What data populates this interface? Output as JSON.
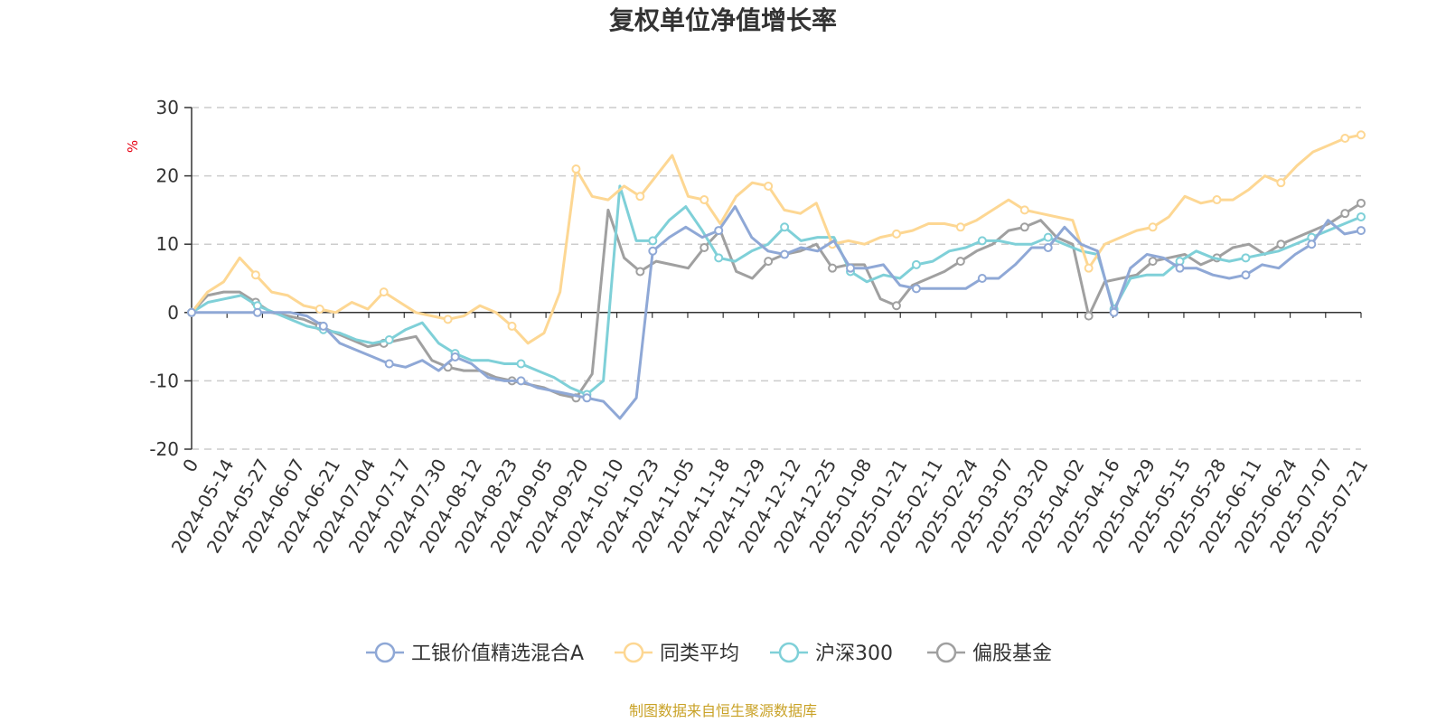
{
  "chart_data": {
    "type": "line",
    "title": "复权单位净值增长率",
    "ylabel": "%",
    "ylim": [
      -20,
      30
    ],
    "yticks": [
      "30",
      "20",
      "10",
      "0",
      "-10",
      "-20"
    ],
    "xticks": [
      "0",
      "2024-05-14",
      "2024-05-27",
      "2024-06-07",
      "2024-06-21",
      "2024-07-04",
      "2024-07-17",
      "2024-07-30",
      "2024-08-12",
      "2024-08-23",
      "2024-09-05",
      "2024-09-20",
      "2024-10-10",
      "2024-10-23",
      "2024-11-05",
      "2024-11-18",
      "2024-11-29",
      "2024-12-12",
      "2024-12-25",
      "2025-01-08",
      "2025-01-21",
      "2025-02-11",
      "2025-02-24",
      "2025-03-07",
      "2025-03-20",
      "2025-04-02",
      "2025-04-16",
      "2025-04-29",
      "2025-05-15",
      "2025-05-28",
      "2025-06-11",
      "2025-06-24",
      "2025-07-07",
      "2025-07-21"
    ],
    "grid": true,
    "legend_position": "bottom",
    "series": [
      {
        "name": "工银价值精选混合A",
        "color": "#8fa8d6",
        "values": [
          0,
          0,
          0,
          0,
          0,
          0,
          0,
          -0.5,
          -2,
          -4.5,
          -5.5,
          -6.5,
          -7.5,
          -8,
          -7,
          -8.5,
          -6.5,
          -7.5,
          -9.5,
          -10,
          -10,
          -11,
          -11.5,
          -12,
          -12.5,
          -13,
          -15.5,
          -12.5,
          9,
          11,
          12.5,
          11,
          12,
          15.5,
          11,
          9,
          8.5,
          9.5,
          9,
          10.5,
          6.5,
          6.5,
          7,
          4,
          3.5,
          3.5,
          3.5,
          3.5,
          5,
          5,
          7,
          9.5,
          9.5,
          12.5,
          10,
          9,
          0,
          6.5,
          8.5,
          8,
          6.5,
          6.5,
          5.5,
          5,
          5.5,
          7,
          6.5,
          8.5,
          10,
          13.5,
          11.5,
          12
        ]
      },
      {
        "name": "同类平均",
        "color": "#fdd793",
        "values": [
          0,
          3,
          4.5,
          8,
          5.5,
          3,
          2.5,
          1,
          0.5,
          0,
          1.5,
          0.5,
          3,
          1.5,
          0,
          -0.5,
          -1,
          -0.5,
          1,
          0,
          -2,
          -4.5,
          -3,
          3,
          21,
          17,
          16.5,
          18.5,
          17,
          20,
          23,
          17,
          16.5,
          13,
          17,
          19,
          18.5,
          15,
          14.5,
          16,
          10,
          10.5,
          10,
          11,
          11.5,
          12,
          13,
          13,
          12.5,
          13.5,
          15,
          16.5,
          15,
          14.5,
          14,
          13.5,
          6.5,
          10,
          11,
          12,
          12.5,
          14,
          17,
          16,
          16.5,
          16.5,
          18,
          20,
          19,
          21.5,
          23.5,
          24.5,
          25.5,
          26
        ]
      },
      {
        "name": "沪深300",
        "color": "#7fd0d8",
        "values": [
          0,
          1.5,
          2,
          2.5,
          1,
          0,
          -1,
          -2,
          -2.5,
          -3,
          -4,
          -4.5,
          -4,
          -2.5,
          -1.5,
          -4.5,
          -6,
          -7,
          -7,
          -7.5,
          -7.5,
          -8.5,
          -9.5,
          -11,
          -12,
          -10,
          18.5,
          10.5,
          10.5,
          13.5,
          15.5,
          12,
          8,
          7.5,
          9,
          10,
          12.5,
          10.5,
          11,
          11,
          6,
          4.5,
          5.5,
          5,
          7,
          7.5,
          9,
          9.5,
          10.5,
          10.5,
          10,
          10,
          11,
          10,
          9,
          8.5,
          0.5,
          5,
          5.5,
          5.5,
          7.5,
          9,
          8,
          7.5,
          8,
          8.5,
          9,
          10,
          11,
          12,
          13,
          14
        ]
      },
      {
        "name": "偏股基金",
        "color": "#a0a0a0",
        "values": [
          0,
          2.5,
          3,
          3,
          1.5,
          0,
          -0.5,
          -1,
          -2,
          -3,
          -4,
          -5,
          -4.5,
          -4,
          -3.5,
          -7,
          -8,
          -8.5,
          -8.5,
          -9.5,
          -10,
          -10.5,
          -11,
          -12,
          -12.5,
          -9,
          15,
          8,
          6,
          7.5,
          7,
          6.5,
          9.5,
          12,
          6,
          5,
          7.5,
          8.5,
          9,
          10,
          6.5,
          7,
          7,
          2,
          1,
          4,
          5,
          6,
          7.5,
          9,
          10,
          12,
          12.5,
          13.5,
          11,
          10,
          -0.5,
          4.5,
          5,
          5.5,
          7.5,
          8,
          8.5,
          7,
          8,
          9.5,
          10,
          8.5,
          10,
          11,
          12,
          13,
          14.5,
          16
        ]
      }
    ]
  },
  "source": "制图数据来自恒生聚源数据库"
}
